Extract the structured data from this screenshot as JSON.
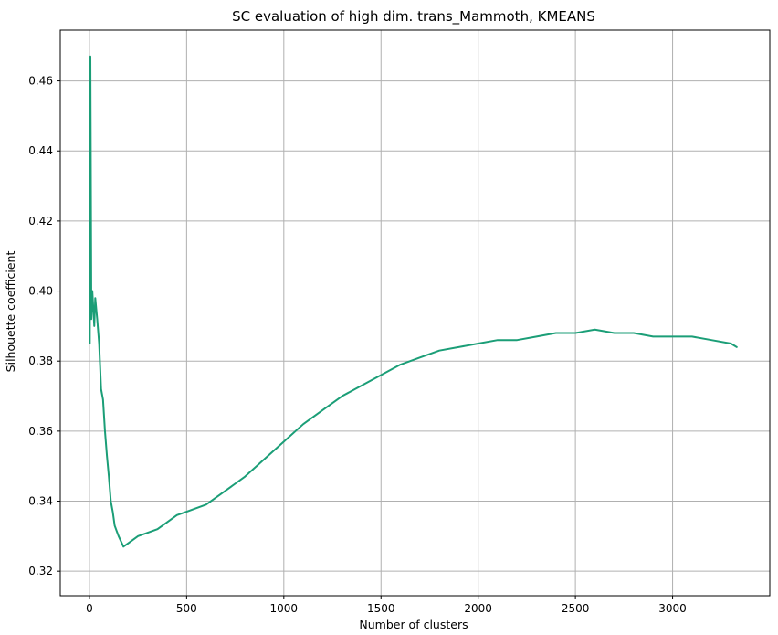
{
  "chart_data": {
    "type": "line",
    "title": "SC evaluation of high dim. trans_Mammoth, KMEANS",
    "xlabel": "Number of clusters",
    "ylabel": "Silhouette coefficient",
    "xlim": [
      -150,
      3500
    ],
    "ylim": [
      0.313,
      0.4745
    ],
    "grid": true,
    "line_color": "#1b9e77",
    "x_ticks": [
      0,
      500,
      1000,
      1500,
      2000,
      2500,
      3000
    ],
    "y_ticks": [
      0.32,
      0.34,
      0.36,
      0.38,
      0.4,
      0.42,
      0.44,
      0.46
    ],
    "x_tick_labels": [
      "0",
      "500",
      "1000",
      "1500",
      "2000",
      "2500",
      "3000"
    ],
    "y_tick_labels": [
      "0.32",
      "0.34",
      "0.36",
      "0.38",
      "0.40",
      "0.42",
      "0.44",
      "0.46"
    ],
    "series": [
      {
        "x": [
          2,
          5,
          10,
          15,
          20,
          25,
          30,
          40,
          50,
          60,
          70,
          80,
          90,
          100,
          110,
          120,
          130,
          150,
          175,
          200,
          225,
          250,
          300,
          350,
          400,
          450,
          500,
          600,
          700,
          800,
          900,
          1000,
          1100,
          1200,
          1300,
          1400,
          1500,
          1600,
          1700,
          1800,
          1900,
          2000,
          2100,
          2200,
          2300,
          2400,
          2500,
          2600,
          2700,
          2800,
          2900,
          3000,
          3100,
          3200,
          3300,
          3330
        ],
        "y": [
          0.385,
          0.467,
          0.392,
          0.4,
          0.395,
          0.39,
          0.398,
          0.392,
          0.385,
          0.372,
          0.369,
          0.36,
          0.353,
          0.347,
          0.34,
          0.337,
          0.333,
          0.33,
          0.327,
          0.328,
          0.329,
          0.33,
          0.331,
          0.332,
          0.334,
          0.336,
          0.337,
          0.339,
          0.343,
          0.347,
          0.352,
          0.357,
          0.362,
          0.366,
          0.37,
          0.373,
          0.376,
          0.379,
          0.381,
          0.383,
          0.384,
          0.385,
          0.386,
          0.386,
          0.387,
          0.388,
          0.388,
          0.389,
          0.388,
          0.388,
          0.387,
          0.387,
          0.387,
          0.386,
          0.385,
          0.384
        ]
      }
    ]
  }
}
